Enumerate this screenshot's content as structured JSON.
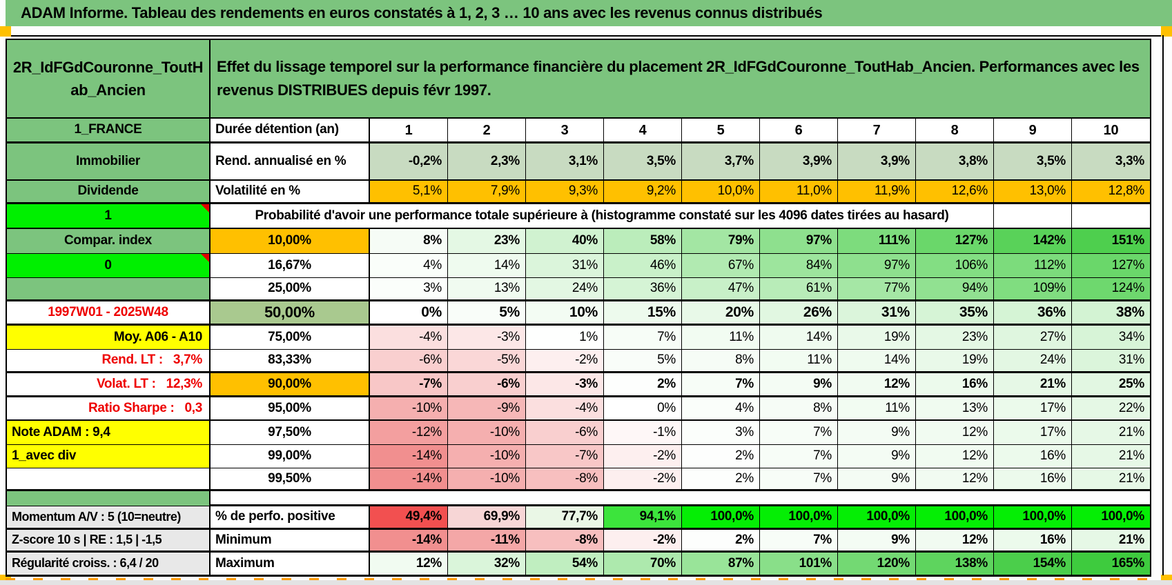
{
  "title": "ADAM Informe. Tableau des rendements en euros constatés à 1, 2, 3 … 10 ans avec les revenus connus distribués",
  "header": {
    "left": "2R_IdFGdCouronne_ToutHab_Ancien",
    "main": "Effet du lissage temporel sur la performance financière du placement 2R_IdFGdCouronne_ToutHab_Ancien. Performances avec les revenus DISTRIBUES depuis févr 1997."
  },
  "palette": {
    "green": "#7CC47E",
    "bright": "#00F000",
    "sage": "#A9C98F",
    "rend_green": "#C8DBC1",
    "orange": "#FFC000",
    "yellow": "#FFFF00",
    "gray": "#E8E8E8",
    "white": "#FFFFFF",
    "red_text": "#EE0000",
    "marker_orange": "#FFC000",
    "scale_neg_max": "#F18F8F",
    "scale_pos_max": "#3ECB3E"
  },
  "table": {
    "columns": [
      "1",
      "2",
      "3",
      "4",
      "5",
      "6",
      "7",
      "8",
      "9",
      "10"
    ],
    "colhead": {
      "a": "1_FRANCE",
      "b": "Durée détention (an)"
    },
    "rows": [
      {
        "type": "data",
        "a": {
          "text": "Immobilier",
          "bg": "green",
          "align": "ctr"
        },
        "b": {
          "text": "Rend. annualisé en %",
          "align": "lft"
        },
        "cells": [
          "-0,2%",
          "2,3%",
          "3,1%",
          "3,5%",
          "3,7%",
          "3,9%",
          "3,9%",
          "3,8%",
          "3,5%",
          "3,3%"
        ],
        "cellbg": "rend_green",
        "bold": true,
        "bb": 2
      },
      {
        "type": "data",
        "a": {
          "text": "Dividende",
          "bg": "green",
          "align": "ctr"
        },
        "b": {
          "text": "Volatilité en %",
          "align": "lft"
        },
        "cells": [
          "5,1%",
          "7,9%",
          "9,3%",
          "9,2%",
          "10,0%",
          "11,0%",
          "11,9%",
          "12,6%",
          "13,0%",
          "12,8%"
        ],
        "cellbg": "orange",
        "bold": false,
        "bb": 3
      },
      {
        "type": "merged",
        "a": {
          "text": "1",
          "bg": "bright",
          "align": "ctr",
          "corner": true
        },
        "text": "Probabilité d'avoir une performance totale supérieure à (histogramme constaté sur les 4096 dates tirées au hasard)"
      },
      {
        "type": "data",
        "a": {
          "text": "Compar. index",
          "bg": "green",
          "align": "ctr"
        },
        "b": {
          "text": "10,00%",
          "bg": "orange",
          "align": "ctr"
        },
        "cells": [
          "8%",
          "23%",
          "40%",
          "58%",
          "79%",
          "97%",
          "111%",
          "127%",
          "142%",
          "151%"
        ],
        "cellbg": "scale",
        "bold": true
      },
      {
        "type": "data",
        "a": {
          "text": "0",
          "bg": "bright",
          "align": "ctr",
          "corner": true
        },
        "b": {
          "text": "16,67%",
          "align": "ctr"
        },
        "cells": [
          "4%",
          "14%",
          "31%",
          "46%",
          "67%",
          "84%",
          "97%",
          "106%",
          "112%",
          "127%"
        ],
        "cellbg": "scale",
        "bold": false
      },
      {
        "type": "data",
        "a": {
          "text": "",
          "bg": "green",
          "align": "ctr"
        },
        "b": {
          "text": "25,00%",
          "align": "ctr"
        },
        "cells": [
          "3%",
          "13%",
          "24%",
          "36%",
          "47%",
          "61%",
          "77%",
          "94%",
          "109%",
          "124%"
        ],
        "cellbg": "scale",
        "bold": false,
        "bb": 3
      },
      {
        "type": "data",
        "a": {
          "text": "1997W01 - 2025W48",
          "bg": "white",
          "color": "red",
          "align": "ctr"
        },
        "b": {
          "text": "50,00%",
          "bg": "sage",
          "align": "ctr",
          "big": true
        },
        "cells": [
          "0%",
          "5%",
          "10%",
          "15%",
          "20%",
          "26%",
          "31%",
          "35%",
          "36%",
          "38%"
        ],
        "cellbg": "scale",
        "bold": true,
        "big": true,
        "bb": 3
      },
      {
        "type": "data",
        "a": {
          "text": "Moy. A06 - A10",
          "bg": "yellow",
          "align": "rgt"
        },
        "b": {
          "text": "75,00%",
          "align": "ctr"
        },
        "cells": [
          "-4%",
          "-3%",
          "1%",
          "7%",
          "11%",
          "14%",
          "19%",
          "23%",
          "27%",
          "34%"
        ],
        "cellbg": "scale",
        "bold": false
      },
      {
        "type": "data",
        "a": {
          "text": "Rend. LT :   3,7%",
          "bg": "white",
          "color": "red",
          "align": "rgt"
        },
        "b": {
          "text": "83,33%",
          "align": "ctr"
        },
        "cells": [
          "-6%",
          "-5%",
          "-2%",
          "5%",
          "8%",
          "11%",
          "14%",
          "19%",
          "24%",
          "31%"
        ],
        "cellbg": "scale",
        "bold": false,
        "bb": 3
      },
      {
        "type": "data",
        "a": {
          "text": "Volat. LT :   12,3%",
          "bg": "white",
          "color": "red",
          "align": "rgt"
        },
        "b": {
          "text": "90,00%",
          "bg": "orange",
          "align": "ctr"
        },
        "cells": [
          "-7%",
          "-6%",
          "-3%",
          "2%",
          "7%",
          "9%",
          "12%",
          "16%",
          "21%",
          "25%"
        ],
        "cellbg": "scale",
        "bold": true,
        "bb": 3
      },
      {
        "type": "data",
        "a": {
          "text": "Ratio Sharpe :   0,3",
          "bg": "white",
          "color": "red",
          "align": "rgt"
        },
        "b": {
          "text": "95,00%",
          "align": "ctr"
        },
        "cells": [
          "-10%",
          "-9%",
          "-4%",
          "0%",
          "4%",
          "8%",
          "11%",
          "13%",
          "17%",
          "22%"
        ],
        "cellbg": "scale",
        "bold": false,
        "bb": 2
      },
      {
        "type": "data",
        "a": {
          "text": "Note ADAM : 9,4",
          "bg": "yellow",
          "align": "lft"
        },
        "b": {
          "text": "97,50%",
          "align": "ctr"
        },
        "cells": [
          "-12%",
          "-10%",
          "-6%",
          "-1%",
          "3%",
          "7%",
          "9%",
          "12%",
          "17%",
          "21%"
        ],
        "cellbg": "scale",
        "bold": false
      },
      {
        "type": "data",
        "a": {
          "text": "1_avec div",
          "bg": "yellow",
          "align": "lft"
        },
        "b": {
          "text": "99,00%",
          "align": "ctr"
        },
        "cells": [
          "-14%",
          "-10%",
          "-7%",
          "-2%",
          "2%",
          "7%",
          "9%",
          "12%",
          "16%",
          "21%"
        ],
        "cellbg": "scale",
        "bold": false
      },
      {
        "type": "data",
        "a": {
          "text": "",
          "bg": "white",
          "align": "ctr"
        },
        "b": {
          "text": "99,50%",
          "align": "ctr"
        },
        "cells": [
          "-14%",
          "-10%",
          "-8%",
          "-2%",
          "2%",
          "7%",
          "9%",
          "12%",
          "16%",
          "21%"
        ],
        "cellbg": "scale",
        "bold": false,
        "bb": 3
      },
      {
        "type": "sep"
      },
      {
        "type": "data",
        "a": {
          "text": "Momentum A/V : 5 (10=neutre)",
          "bg": "gray",
          "align": "lft",
          "small": true
        },
        "b": {
          "text": "% de perfo. positive",
          "align": "lft"
        },
        "cells": [
          "49,4%",
          "69,9%",
          "77,7%",
          "94,1%",
          "100,0%",
          "100,0%",
          "100,0%",
          "100,0%",
          "100,0%",
          "100,0%"
        ],
        "cellbg": [
          "#F25050",
          "#F7D6D6",
          "#EAF7E6",
          "#3CE43C",
          "#05EE05",
          "#05EE05",
          "#05EE05",
          "#05EE05",
          "#05EE05",
          "#05EE05"
        ],
        "bold": true,
        "bb": 3
      },
      {
        "type": "data",
        "a": {
          "text": "Z-score 10 s | RE : 1,5 | -1,5",
          "bg": "gray",
          "align": "lft",
          "small": true
        },
        "b": {
          "text": "Minimum",
          "align": "lft"
        },
        "cells": [
          "-14%",
          "-11%",
          "-8%",
          "-2%",
          "2%",
          "7%",
          "9%",
          "12%",
          "16%",
          "21%"
        ],
        "cellbg": "scale",
        "bold": true,
        "bb": 3
      },
      {
        "type": "data",
        "a": {
          "text": "Régularité croiss. : 6,4 / 20",
          "bg": "gray",
          "align": "lft",
          "small": true
        },
        "b": {
          "text": "Maximum",
          "align": "lft"
        },
        "cells": [
          "12%",
          "32%",
          "54%",
          "70%",
          "87%",
          "101%",
          "120%",
          "138%",
          "154%",
          "165%"
        ],
        "cellbg": "scale",
        "bold": true
      }
    ]
  },
  "markers": {
    "comment_corner_cells": [
      "1",
      "0"
    ],
    "page_break_style": "orange-dashed"
  }
}
